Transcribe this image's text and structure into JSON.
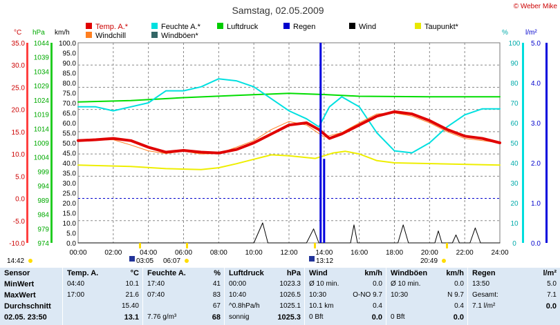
{
  "header": {
    "title": "Samstag, 02.05.2009",
    "credit": "© Weber Mike"
  },
  "legend": [
    {
      "label": "Temp. A.*",
      "color": "#e00000"
    },
    {
      "label": "Feuchte A.*",
      "color": "#00e0e0"
    },
    {
      "label": "Luftdruck",
      "color": "#00cc00"
    },
    {
      "label": "Regen",
      "color": "#0000cc"
    },
    {
      "label": "Wind",
      "color": "#000000"
    },
    {
      "label": "Taupunkt*",
      "color": "#e8e800"
    },
    {
      "label": "Windchill",
      "color": "#ff7f20"
    },
    {
      "label": "Windböen*",
      "color": "#336666"
    }
  ],
  "axes": {
    "temp_unit": "°C",
    "hpa_unit": "hPa",
    "kmh_unit": "km/h",
    "pct_unit": "%",
    "rain_unit": "l/m²",
    "temp_ticks": [
      "35.0",
      "30.0",
      "25.0",
      "20.0",
      "15.0",
      "10.0",
      "5.0",
      "0.0",
      "-5.0",
      "-10.0"
    ],
    "hpa_ticks": [
      "1044",
      "1039",
      "1034",
      "1029",
      "1024",
      "1019",
      "1014",
      "1009",
      "1004",
      "999",
      "994",
      "989",
      "984",
      "979",
      "974"
    ],
    "kmh_ticks": [
      "100.0",
      "95.0",
      "90.0",
      "85.0",
      "80.0",
      "75.0",
      "70.0",
      "65.0",
      "60.0",
      "55.0",
      "50.0",
      "45.0",
      "40.0",
      "35.0",
      "30.0",
      "25.0",
      "20.0",
      "15.0",
      "10.0",
      "5.0",
      "0.0"
    ],
    "pct_ticks": [
      "100",
      "90",
      "80",
      "70",
      "60",
      "50",
      "40",
      "30",
      "20",
      "10",
      "0"
    ],
    "rain_ticks": [
      "5.0",
      "4.0",
      "3.0",
      "2.0",
      "1.0",
      "0.0"
    ],
    "x_ticks": [
      "00:00",
      "02:00",
      "04:00",
      "06:00",
      "08:00",
      "10:00",
      "12:00",
      "14:00",
      "16:00",
      "18:00",
      "20:00",
      "22:00",
      "24:00"
    ]
  },
  "sun": {
    "sunrise_left": "14:42",
    "sunrise": "03:05",
    "morning": "06:07",
    "midday": "13:12",
    "sunset": "20:49"
  },
  "chart_data": {
    "type": "line",
    "x_unit": "hours",
    "xlim": [
      0,
      24
    ],
    "series": [
      {
        "name": "Temp. A.*",
        "axis": "°C",
        "points": [
          [
            0,
            13.0
          ],
          [
            1,
            13.2
          ],
          [
            2,
            13.5
          ],
          [
            3,
            13.0
          ],
          [
            4,
            11.5
          ],
          [
            5,
            10.4
          ],
          [
            6,
            10.8
          ],
          [
            7,
            10.4
          ],
          [
            8,
            10.2
          ],
          [
            9,
            11.0
          ],
          [
            10,
            12.5
          ],
          [
            11,
            14.5
          ],
          [
            12,
            16.5
          ],
          [
            13,
            17.0
          ],
          [
            13.7,
            15.5
          ],
          [
            14.3,
            13.5
          ],
          [
            15,
            14.5
          ],
          [
            16,
            16.5
          ],
          [
            17,
            18.5
          ],
          [
            18,
            19.5
          ],
          [
            19,
            19.0
          ],
          [
            20,
            17.5
          ],
          [
            21,
            15.5
          ],
          [
            22,
            14.0
          ],
          [
            23,
            13.5
          ],
          [
            24,
            12.5
          ]
        ]
      },
      {
        "name": "Windchill",
        "axis": "°C",
        "points": [
          [
            0,
            13.0
          ],
          [
            2,
            13.2
          ],
          [
            3,
            12.0
          ],
          [
            4,
            10.7
          ],
          [
            5,
            10.1
          ],
          [
            6,
            10.6
          ],
          [
            7,
            10.0
          ],
          [
            8,
            10.1
          ],
          [
            9,
            11.5
          ],
          [
            10,
            13.0
          ],
          [
            11,
            15.5
          ],
          [
            12,
            17.3
          ],
          [
            13,
            16.5
          ],
          [
            14,
            13.8
          ],
          [
            15,
            14.8
          ],
          [
            16,
            17.0
          ],
          [
            17,
            19.0
          ],
          [
            18,
            19.2
          ],
          [
            19,
            18.5
          ],
          [
            20,
            17.0
          ],
          [
            21,
            15.0
          ],
          [
            22,
            13.5
          ],
          [
            23,
            13.0
          ],
          [
            24,
            12.5
          ]
        ]
      },
      {
        "name": "Feuchte A.*",
        "axis": "%",
        "points": [
          [
            0,
            68
          ],
          [
            1,
            68
          ],
          [
            2,
            66
          ],
          [
            3,
            68
          ],
          [
            4,
            70
          ],
          [
            5,
            76
          ],
          [
            6,
            76
          ],
          [
            7,
            78
          ],
          [
            8,
            82
          ],
          [
            9,
            81
          ],
          [
            10,
            78
          ],
          [
            11,
            72
          ],
          [
            12,
            66
          ],
          [
            13,
            62
          ],
          [
            13.7,
            58
          ],
          [
            14.3,
            68
          ],
          [
            15,
            73
          ],
          [
            16,
            68
          ],
          [
            17,
            55
          ],
          [
            18,
            46
          ],
          [
            19,
            45
          ],
          [
            20,
            50
          ],
          [
            21,
            58
          ],
          [
            22,
            64
          ],
          [
            23,
            67
          ],
          [
            24,
            67
          ]
        ]
      },
      {
        "name": "Luftdruck",
        "axis": "hPa",
        "points": [
          [
            0,
            1023.3
          ],
          [
            3,
            1023.8
          ],
          [
            6,
            1024.8
          ],
          [
            9,
            1025.6
          ],
          [
            12,
            1026.3
          ],
          [
            14,
            1025.9
          ],
          [
            16,
            1025.3
          ],
          [
            20,
            1025.1
          ],
          [
            24,
            1025.1
          ]
        ]
      },
      {
        "name": "Taupunkt*",
        "axis": "°C",
        "points": [
          [
            0,
            7.5
          ],
          [
            3,
            7.2
          ],
          [
            5,
            6.7
          ],
          [
            7,
            6.5
          ],
          [
            8,
            6.9
          ],
          [
            9,
            7.8
          ],
          [
            10,
            8.8
          ],
          [
            11,
            9.8
          ],
          [
            12,
            9.6
          ],
          [
            13.5,
            9.0
          ],
          [
            14.5,
            10.2
          ],
          [
            15.2,
            10.6
          ],
          [
            16,
            10.0
          ],
          [
            17,
            8.5
          ],
          [
            18,
            8.0
          ],
          [
            24,
            7.5
          ]
        ]
      },
      {
        "name": "Wind",
        "axis": "km/h",
        "points": [
          [
            0,
            0
          ],
          [
            10,
            0
          ],
          [
            10.5,
            10
          ],
          [
            10.8,
            0
          ],
          [
            13,
            0
          ],
          [
            13.4,
            7
          ],
          [
            13.7,
            0
          ],
          [
            15.5,
            0
          ],
          [
            15.7,
            9
          ],
          [
            15.9,
            0
          ],
          [
            18.2,
            0
          ],
          [
            18.5,
            9
          ],
          [
            18.8,
            0
          ],
          [
            20.3,
            0
          ],
          [
            20.5,
            6
          ],
          [
            20.7,
            0
          ],
          [
            21.3,
            0
          ],
          [
            21.5,
            4
          ],
          [
            21.7,
            0
          ],
          [
            22.3,
            0
          ],
          [
            22.6,
            7.5
          ],
          [
            22.9,
            0
          ],
          [
            24,
            0
          ]
        ]
      },
      {
        "name": "Regen",
        "axis": "l/m²",
        "points": [
          [
            13.8,
            5.0
          ],
          [
            14.0,
            2.1
          ]
        ]
      }
    ]
  },
  "table": {
    "sensor": {
      "hdr": "Sensor",
      "rows": [
        "MinWert",
        "MaxWert",
        "Durchschnitt",
        "02.05. 23:50"
      ]
    },
    "temp": {
      "hdr": "Temp. A.",
      "unit": "°C",
      "rows": [
        [
          "04:40",
          "10.1"
        ],
        [
          "17:00",
          "21.6"
        ],
        [
          "",
          "15.40"
        ],
        [
          "",
          "13.1"
        ]
      ]
    },
    "hum": {
      "hdr": "Feuchte A.",
      "unit": "%",
      "rows": [
        [
          "17:40",
          "41"
        ],
        [
          "07:40",
          "83"
        ],
        [
          "",
          "67"
        ],
        [
          "7.76 g/m³",
          "68"
        ]
      ]
    },
    "press": {
      "hdr": "Luftdruck",
      "unit": "hPa",
      "rows": [
        [
          "00:00",
          "1023.3"
        ],
        [
          "10:40",
          "1026.5"
        ],
        [
          "^0.8hPa/h",
          "1025.1"
        ],
        [
          "sonnig",
          "1025.3"
        ]
      ]
    },
    "wind": {
      "hdr": "Wind",
      "unit": "km/h",
      "rows": [
        [
          "Ø 10 min.",
          "0.0"
        ],
        [
          "10:30",
          "O-NO 9.7"
        ],
        [
          "10.1 km",
          "0.4"
        ],
        [
          "0 Bft",
          "0.0"
        ]
      ]
    },
    "gust": {
      "hdr": "Windböen",
      "unit": "km/h",
      "rows": [
        [
          "Ø 10 min.",
          "0.0"
        ],
        [
          "10:30",
          "N 9.7"
        ],
        [
          "",
          "0.4"
        ],
        [
          "0 Bft",
          "0.0"
        ]
      ]
    },
    "rain": {
      "hdr": "Regen",
      "unit": "l/m²",
      "rows": [
        [
          "13:50",
          "5.0"
        ],
        [
          "Gesamt:",
          "7.1"
        ],
        [
          "7.1 l/m²",
          "0.0"
        ]
      ]
    }
  }
}
